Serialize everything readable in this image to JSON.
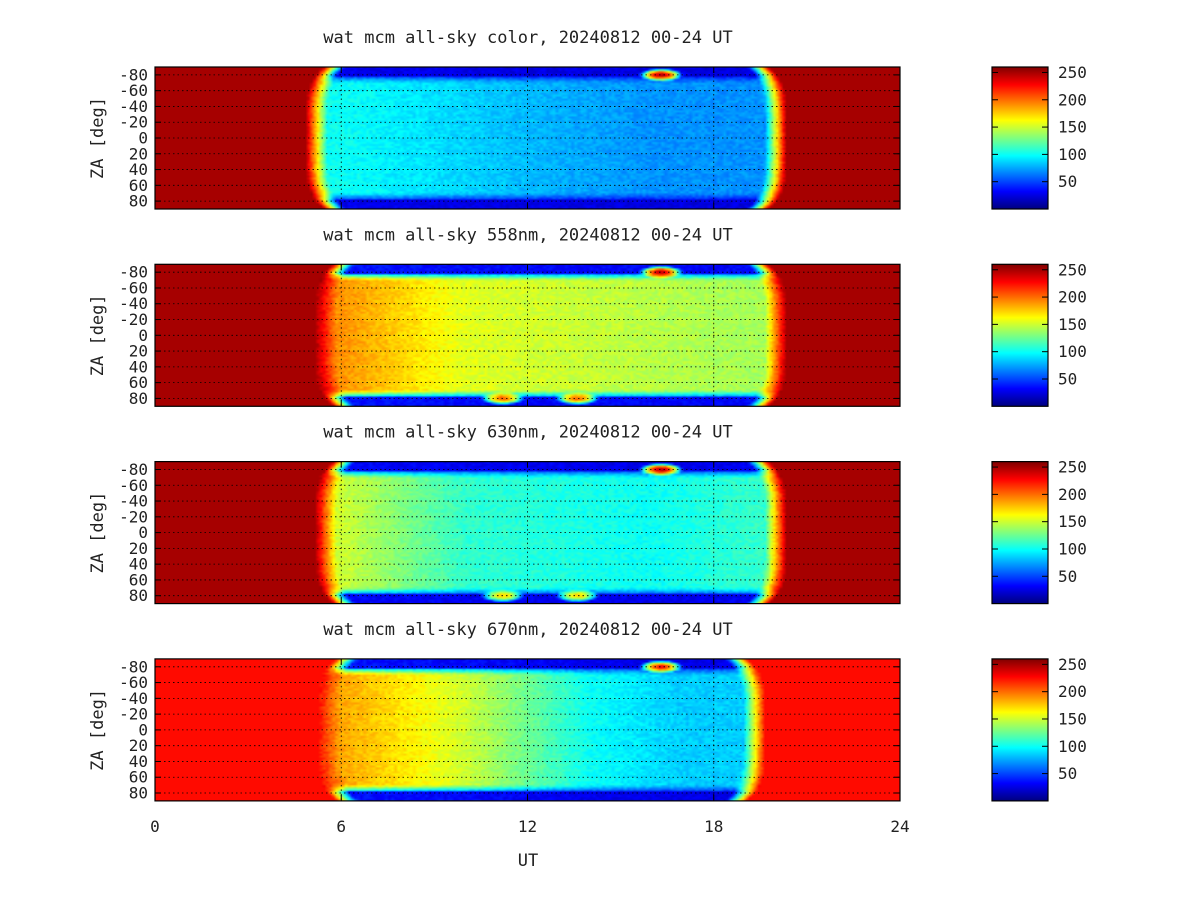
{
  "colors": {
    "jet": [
      "#00007f",
      "#0000ff",
      "#007fff",
      "#00ffff",
      "#7fff7f",
      "#ffff00",
      "#ff7f00",
      "#ff0000",
      "#7f0000"
    ]
  },
  "shared": {
    "xlabel": "UT",
    "ylabel": "ZA [deg]",
    "xticks": [
      0,
      6,
      12,
      18,
      24
    ],
    "yticks": [
      -80,
      -60,
      -40,
      -20,
      0,
      20,
      40,
      60,
      80
    ],
    "xlim": [
      0,
      24
    ],
    "ylim": [
      -90,
      90
    ],
    "cbticks": [
      50,
      100,
      150,
      200,
      250
    ],
    "clim": [
      0,
      260
    ]
  },
  "chart_data": [
    {
      "type": "heatmap",
      "title": "wat mcm all-sky color, 20240812 00-24 UT",
      "night_start_ut": 5.2,
      "night_end_ut": 20.0,
      "day_value": 250,
      "rim_value": 20,
      "typical_values": [
        {
          "ut": 6.0,
          "value": 100
        },
        {
          "ut": 12.0,
          "value": 80
        },
        {
          "ut": 16.0,
          "value": 70
        },
        {
          "ut": 19.0,
          "value": 70
        }
      ],
      "features": [
        {
          "ut": 16.3,
          "za": -80,
          "value": 245
        }
      ]
    },
    {
      "type": "heatmap",
      "title": "wat mcm all-sky 558nm, 20240812 00-24 UT",
      "night_start_ut": 5.5,
      "night_end_ut": 20.0,
      "day_value": 250,
      "rim_value": 20,
      "typical_values": [
        {
          "ut": 6.0,
          "value": 190
        },
        {
          "ut": 10.0,
          "value": 155
        },
        {
          "ut": 16.0,
          "value": 145
        },
        {
          "ut": 19.0,
          "value": 140
        }
      ],
      "features": [
        {
          "ut": 16.3,
          "za": -80,
          "value": 245
        },
        {
          "ut": 11.2,
          "za": 80,
          "value": 205
        },
        {
          "ut": 13.6,
          "za": 80,
          "value": 205
        }
      ]
    },
    {
      "type": "heatmap",
      "title": "wat mcm all-sky 630nm, 20240812 00-24 UT",
      "night_start_ut": 5.5,
      "night_end_ut": 20.0,
      "day_value": 250,
      "rim_value": 20,
      "typical_values": [
        {
          "ut": 6.0,
          "value": 150
        },
        {
          "ut": 10.0,
          "value": 110
        },
        {
          "ut": 16.0,
          "value": 100
        },
        {
          "ut": 19.0,
          "value": 110
        }
      ],
      "features": [
        {
          "ut": 16.3,
          "za": -80,
          "value": 245
        },
        {
          "ut": 11.2,
          "za": 80,
          "value": 175
        },
        {
          "ut": 13.6,
          "za": 80,
          "value": 175
        }
      ]
    },
    {
      "type": "heatmap",
      "title": "wat mcm all-sky 670nm, 20240812 00-24 UT",
      "night_start_ut": 5.6,
      "night_end_ut": 19.3,
      "day_value": 225,
      "rim_value": 20,
      "typical_values": [
        {
          "ut": 6.0,
          "value": 185
        },
        {
          "ut": 10.0,
          "value": 150
        },
        {
          "ut": 14.0,
          "value": 100
        },
        {
          "ut": 17.0,
          "value": 85
        }
      ],
      "features": [
        {
          "ut": 16.3,
          "za": -80,
          "value": 225
        }
      ]
    }
  ]
}
